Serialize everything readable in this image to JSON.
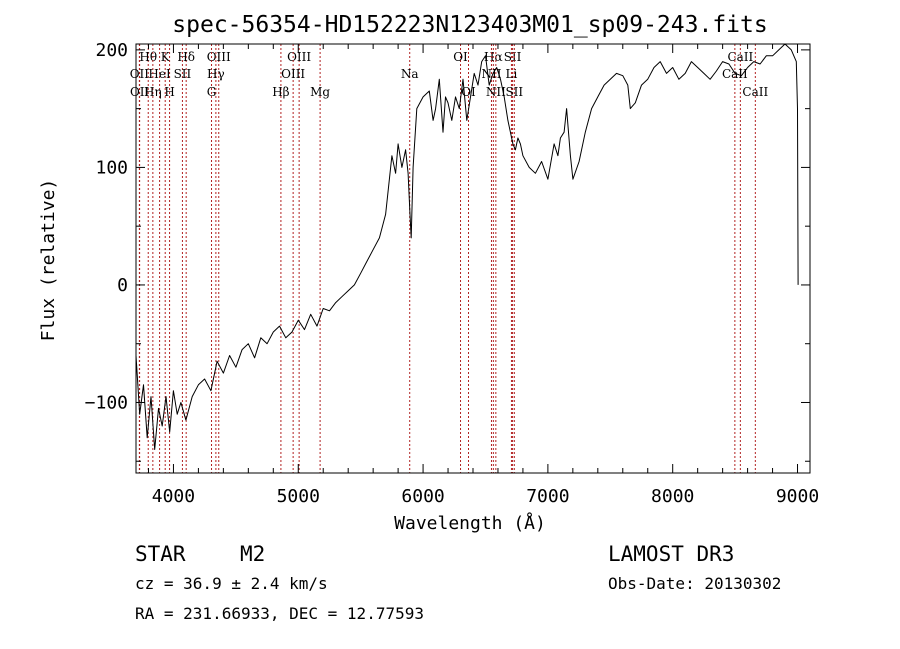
{
  "chart_data": {
    "type": "line",
    "title": "spec-56354-HD152223N123403M01_sp09-243.fits",
    "xlabel": "Wavelength (Å)",
    "ylabel": "Flux (relative)",
    "xlim": [
      3700,
      9100
    ],
    "ylim": [
      -160,
      205
    ],
    "xticks": [
      4000,
      5000,
      6000,
      7000,
      8000,
      9000
    ],
    "yticks": [
      -100,
      0,
      100,
      200
    ],
    "xtick_labels": [
      "4000",
      "5000",
      "6000",
      "7000",
      "8000",
      "9000"
    ],
    "ytick_labels": [
      "−100",
      "0",
      "100",
      "200"
    ],
    "series": [
      {
        "name": "spectrum",
        "x": [
          3700,
          3730,
          3760,
          3790,
          3820,
          3850,
          3880,
          3910,
          3940,
          3970,
          4000,
          4030,
          4060,
          4100,
          4150,
          4200,
          4250,
          4300,
          4350,
          4400,
          4450,
          4500,
          4550,
          4600,
          4650,
          4700,
          4750,
          4800,
          4850,
          4900,
          4950,
          5000,
          5050,
          5100,
          5150,
          5200,
          5250,
          5300,
          5350,
          5400,
          5450,
          5500,
          5550,
          5600,
          5650,
          5700,
          5750,
          5780,
          5800,
          5830,
          5860,
          5880,
          5895,
          5905,
          5920,
          5950,
          6000,
          6050,
          6080,
          6100,
          6130,
          6160,
          6180,
          6200,
          6230,
          6260,
          6290,
          6320,
          6350,
          6380,
          6410,
          6440,
          6470,
          6500,
          6530,
          6560,
          6590,
          6620,
          6650,
          6680,
          6700,
          6720,
          6740,
          6760,
          6780,
          6800,
          6850,
          6900,
          6950,
          7000,
          7050,
          7080,
          7100,
          7130,
          7150,
          7180,
          7200,
          7250,
          7300,
          7350,
          7400,
          7450,
          7500,
          7550,
          7600,
          7640,
          7660,
          7700,
          7750,
          7800,
          7850,
          7900,
          7950,
          8000,
          8050,
          8100,
          8150,
          8200,
          8250,
          8300,
          8350,
          8400,
          8450,
          8500,
          8550,
          8600,
          8650,
          8700,
          8750,
          8800,
          8850,
          8900,
          8950,
          8990,
          9000,
          9005
        ],
        "y": [
          -60,
          -110,
          -85,
          -130,
          -95,
          -140,
          -105,
          -120,
          -95,
          -125,
          -90,
          -110,
          -100,
          -115,
          -95,
          -85,
          -80,
          -90,
          -65,
          -75,
          -60,
          -70,
          -55,
          -50,
          -62,
          -45,
          -50,
          -40,
          -35,
          -45,
          -40,
          -30,
          -38,
          -25,
          -35,
          -20,
          -22,
          -15,
          -10,
          -5,
          0,
          10,
          20,
          30,
          40,
          60,
          110,
          95,
          120,
          100,
          115,
          95,
          60,
          40,
          100,
          150,
          160,
          165,
          140,
          150,
          175,
          130,
          160,
          155,
          140,
          160,
          150,
          175,
          140,
          160,
          180,
          170,
          190,
          195,
          170,
          180,
          185,
          175,
          160,
          140,
          130,
          120,
          115,
          125,
          120,
          110,
          100,
          95,
          105,
          90,
          120,
          110,
          125,
          130,
          150,
          110,
          90,
          105,
          130,
          150,
          160,
          170,
          175,
          180,
          178,
          170,
          150,
          155,
          170,
          175,
          185,
          190,
          180,
          185,
          175,
          180,
          190,
          185,
          180,
          175,
          182,
          190,
          188,
          180,
          178,
          185,
          190,
          188,
          195,
          195,
          200,
          205,
          200,
          190,
          150,
          0
        ]
      }
    ],
    "spectral_lines": [
      {
        "label": "Hθ",
        "wl": 3798,
        "row": 1
      },
      {
        "label": "K",
        "wl": 3934,
        "row": 1
      },
      {
        "label": "Hδ",
        "wl": 4102,
        "row": 1
      },
      {
        "label": "OIII",
        "wl": 4363,
        "row": 1
      },
      {
        "label": "OIII",
        "wl": 5007,
        "row": 1
      },
      {
        "label": "OI",
        "wl": 6300,
        "row": 1
      },
      {
        "label": "Hα",
        "wl": 6563,
        "row": 1
      },
      {
        "label": "SII",
        "wl": 6717,
        "row": 1
      },
      {
        "label": "CaII",
        "wl": 8542,
        "row": 1
      },
      {
        "label": "OII",
        "wl": 3727,
        "row": 2
      },
      {
        "label": "HeI",
        "wl": 3889,
        "row": 2
      },
      {
        "label": "SII",
        "wl": 4072,
        "row": 2
      },
      {
        "label": "Hγ",
        "wl": 4340,
        "row": 2
      },
      {
        "label": "OIII",
        "wl": 4959,
        "row": 2
      },
      {
        "label": "Na",
        "wl": 5893,
        "row": 2
      },
      {
        "label": "NII",
        "wl": 6548,
        "row": 2
      },
      {
        "label": "Li",
        "wl": 6708,
        "row": 2
      },
      {
        "label": "CaII",
        "wl": 8498,
        "row": 2
      },
      {
        "label": "OII",
        "wl": 3729,
        "row": 3
      },
      {
        "label": "Hη",
        "wl": 3835,
        "row": 3
      },
      {
        "label": "H",
        "wl": 3969,
        "row": 3
      },
      {
        "label": "G",
        "wl": 4305,
        "row": 3
      },
      {
        "label": "Hβ",
        "wl": 4861,
        "row": 3
      },
      {
        "label": "Mg",
        "wl": 5175,
        "row": 3
      },
      {
        "label": "OI",
        "wl": 6364,
        "row": 3
      },
      {
        "label": "NII",
        "wl": 6583,
        "row": 3
      },
      {
        "label": "SII",
        "wl": 6731,
        "row": 3
      },
      {
        "label": "CaII",
        "wl": 8662,
        "row": 3
      }
    ]
  },
  "info": {
    "class": "STAR",
    "subclass": "M2",
    "survey": "LAMOST DR3",
    "cz": "cz = 36.9 ± 2.4 km/s",
    "obs_date": "Obs-Date: 20130302",
    "coords": "RA = 231.66933, DEC =  12.77593"
  }
}
